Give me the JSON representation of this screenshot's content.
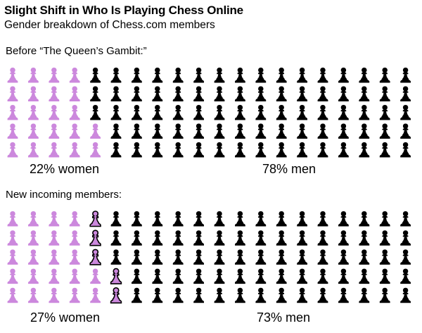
{
  "title": "Slight Shift in Who Is Playing Chess Online",
  "subtitle": "Gender breakdown of Chess.com members",
  "colors": {
    "women": "#cc88dd",
    "men": "#000000",
    "new_women_outline": "#000000"
  },
  "icon": "pawn-icon",
  "chart_data": [
    {
      "type": "waffle",
      "label": "Before “The Queen’s Gambit:”",
      "total_icons": 100,
      "rows": 5,
      "columns": 20,
      "categories": [
        "women",
        "men"
      ],
      "values": [
        22,
        78
      ],
      "value_labels": [
        "22% women",
        "78% men"
      ]
    },
    {
      "type": "waffle",
      "label": "New incoming members:",
      "total_icons": 100,
      "rows": 5,
      "columns": 20,
      "categories": [
        "women",
        "men"
      ],
      "values": [
        27,
        73
      ],
      "value_labels": [
        "27% women",
        "73% men"
      ],
      "newly_added_women": 5
    }
  ]
}
